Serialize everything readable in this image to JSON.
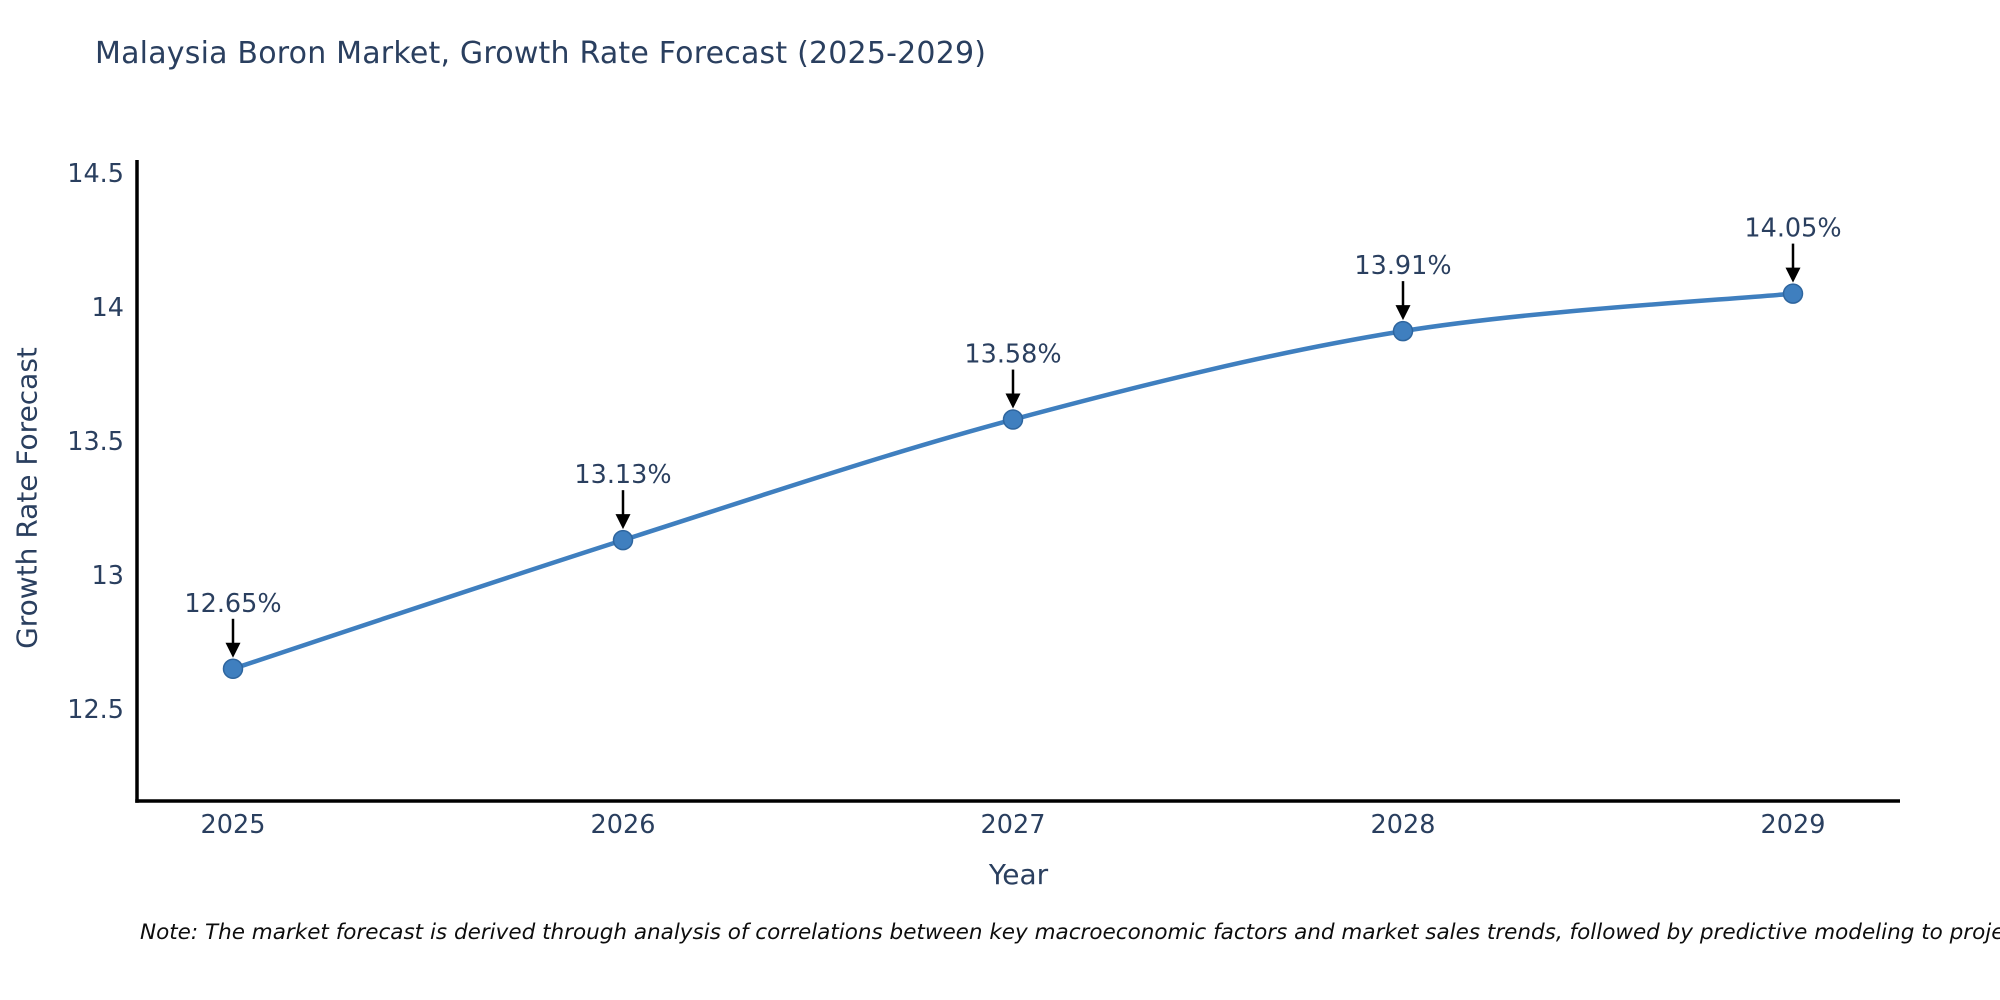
{
  "header": {
    "title": "Malaysia Boron Market, Growth Rate Forecast (2025-2029)"
  },
  "chart_data": {
    "type": "line",
    "title": "Malaysia Boron Market, Growth Rate Forecast (2025-2029)",
    "categories": [
      "2025",
      "2026",
      "2027",
      "2028",
      "2029"
    ],
    "values": [
      12.65,
      13.13,
      13.58,
      13.91,
      14.05
    ],
    "data_labels": [
      "12.65%",
      "13.13%",
      "13.58%",
      "13.91%",
      "14.05%"
    ],
    "series_name": "Growth Rate Forecast",
    "xlabel": "Year",
    "ylabel": "Growth Rate Forecast",
    "ylim": [
      12.5,
      14.5
    ],
    "y_ticks": [
      {
        "value": 14.5,
        "label": "14.5"
      },
      {
        "value": 14.0,
        "label": "14"
      },
      {
        "value": 13.5,
        "label": "13.5"
      },
      {
        "value": 13.0,
        "label": "13"
      },
      {
        "value": 12.5,
        "label": "12.5"
      }
    ],
    "grid": false,
    "legend_position": "none",
    "line_color": "#3f7fbf",
    "marker_color": "#3f7fbf",
    "marker_edge_color": "#2e659e",
    "axis_color": "#000000",
    "tick_label_color": "#2a3f5f",
    "annotation_color": "#2a3f5f",
    "annotation_arrow_color": "#000000"
  },
  "footnote": {
    "text": "Note: The market forecast is derived through analysis of correlations between key macroeconomic factors and market sales trends, followed by predictive modeling to project future sales performance over the forecast period."
  }
}
